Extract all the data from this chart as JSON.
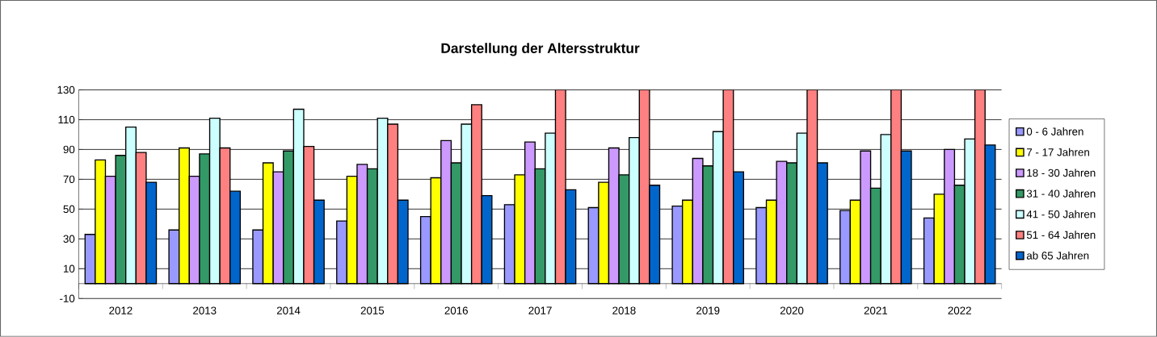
{
  "chart_data": {
    "type": "bar",
    "title": "Darstellung der Altersstruktur",
    "categories": [
      "2012",
      "2013",
      "2014",
      "2015",
      "2016",
      "2017",
      "2018",
      "2019",
      "2020",
      "2021",
      "2022"
    ],
    "series": [
      {
        "name": "0 - 6 Jahren",
        "color": "#9999ff",
        "values": [
          33,
          36,
          36,
          42,
          45,
          53,
          51,
          52,
          51,
          49,
          44
        ]
      },
      {
        "name": "7 - 17 Jahren",
        "color": "#ffff00",
        "values": [
          83,
          91,
          81,
          72,
          71,
          73,
          68,
          56,
          56,
          56,
          60
        ]
      },
      {
        "name": "18 - 30 Jahren",
        "color": "#cc99ff",
        "values": [
          72,
          72,
          75,
          80,
          96,
          95,
          91,
          84,
          82,
          89,
          90
        ]
      },
      {
        "name": "31 - 40 Jahren",
        "color": "#339966",
        "values": [
          86,
          87,
          89,
          77,
          81,
          77,
          73,
          79,
          81,
          64,
          66
        ]
      },
      {
        "name": "41 - 50 Jahren",
        "color": "#ccffff",
        "values": [
          105,
          111,
          117,
          111,
          107,
          101,
          98,
          102,
          101,
          100,
          97
        ]
      },
      {
        "name": "51 - 64 Jahren",
        "color": "#ff8080",
        "values": [
          88,
          91,
          92,
          107,
          120,
          130,
          130,
          130,
          130,
          130,
          130
        ]
      },
      {
        "name": "ab 65 Jahren",
        "color": "#0066cc",
        "values": [
          68,
          62,
          56,
          56,
          59,
          63,
          66,
          75,
          81,
          89,
          93
        ]
      }
    ],
    "ylim": [
      -10,
      130
    ],
    "yticks": [
      -10,
      10,
      30,
      50,
      70,
      90,
      110,
      130
    ],
    "grid": "y",
    "legend": "right"
  }
}
